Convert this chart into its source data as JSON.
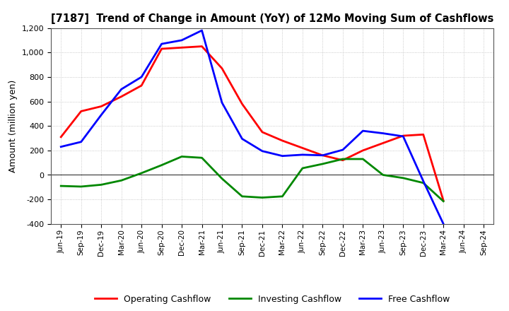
{
  "title": "[7187]  Trend of Change in Amount (YoY) of 12Mo Moving Sum of Cashflows",
  "ylabel": "Amount (million yen)",
  "x_labels": [
    "Jun-19",
    "Sep-19",
    "Dec-19",
    "Mar-20",
    "Jun-20",
    "Sep-20",
    "Dec-20",
    "Mar-21",
    "Jun-21",
    "Sep-21",
    "Dec-21",
    "Mar-22",
    "Jun-22",
    "Sep-22",
    "Dec-22",
    "Mar-23",
    "Jun-23",
    "Sep-23",
    "Dec-23",
    "Mar-24",
    "Jun-24",
    "Sep-24"
  ],
  "operating_cashflow": [
    310,
    520,
    560,
    640,
    730,
    1030,
    1040,
    1050,
    870,
    580,
    350,
    280,
    220,
    160,
    120,
    200,
    260,
    320,
    330,
    -210,
    null,
    null
  ],
  "investing_cashflow": [
    -90,
    -95,
    -80,
    -45,
    15,
    80,
    150,
    140,
    -30,
    -175,
    -185,
    -175,
    55,
    90,
    130,
    130,
    0,
    -25,
    -65,
    -215,
    null,
    null
  ],
  "free_cashflow": [
    230,
    270,
    490,
    700,
    800,
    1070,
    1100,
    1180,
    590,
    295,
    195,
    155,
    165,
    160,
    205,
    360,
    340,
    315,
    -50,
    -400,
    null,
    null
  ],
  "ylim": [
    -400,
    1200
  ],
  "yticks": [
    -400,
    -200,
    0,
    200,
    400,
    600,
    800,
    1000,
    1200
  ],
  "operating_color": "#ff0000",
  "investing_color": "#008800",
  "free_color": "#0000ff",
  "line_width": 2.0,
  "background_color": "#ffffff",
  "grid_color": "#bbbbbb"
}
